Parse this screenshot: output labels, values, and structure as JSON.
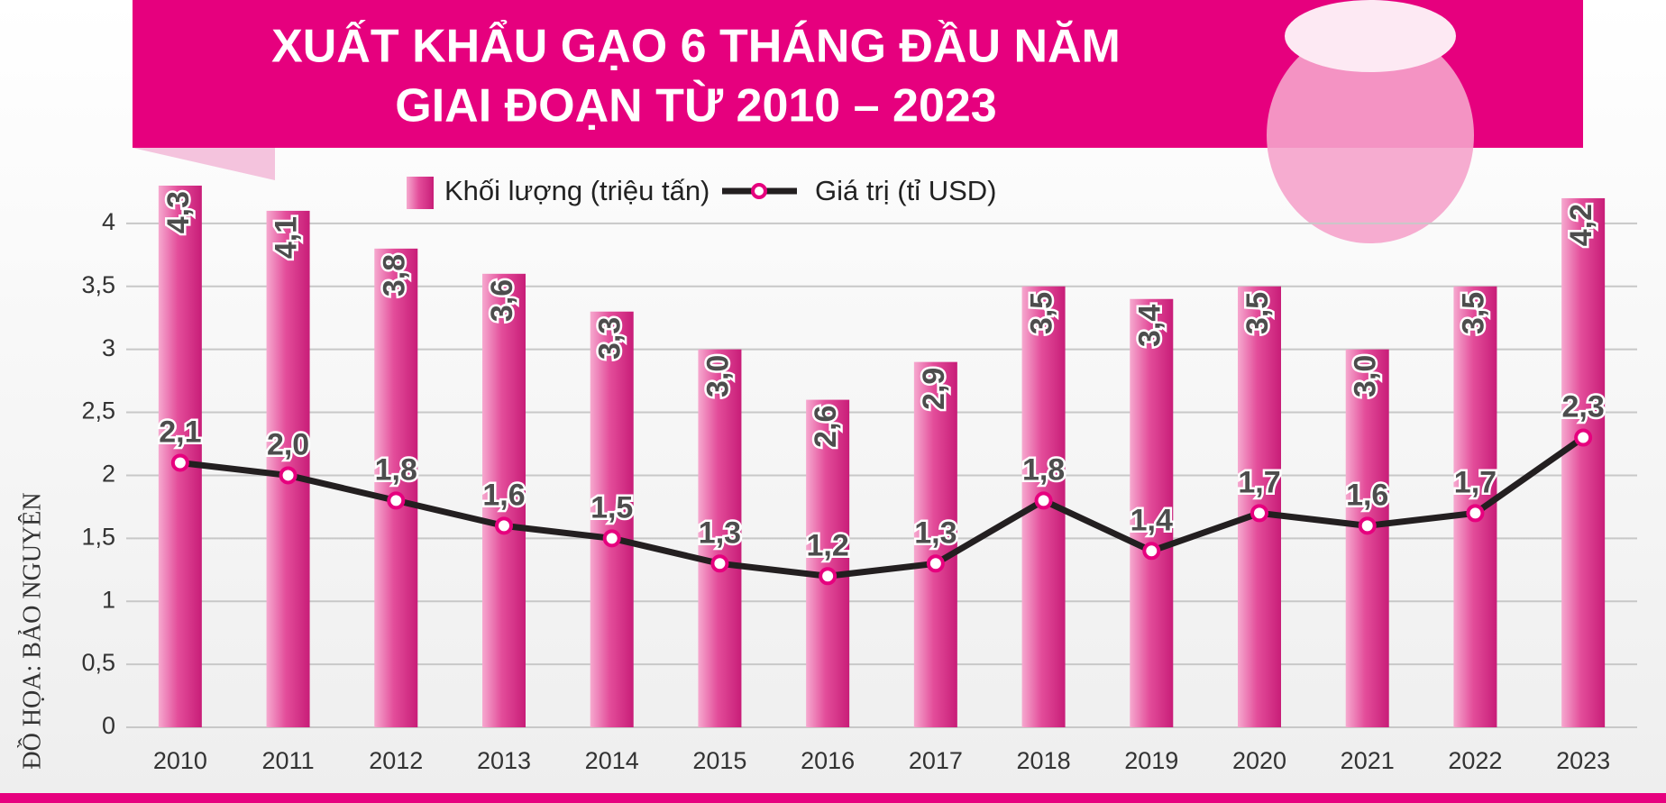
{
  "chart_data": {
    "type": "bar",
    "title": [
      "XUẤT KHẨU GẠO 6 THÁNG ĐẦU NĂM",
      "GIAI ĐOẠN TỪ 2010 – 2023"
    ],
    "credit": "ĐỒ HỌA: BẢO NGUYÊN",
    "categories": [
      "2010",
      "2011",
      "2012",
      "2013",
      "2014",
      "2015",
      "2016",
      "2017",
      "2018",
      "2019",
      "2020",
      "2021",
      "2022",
      "2023"
    ],
    "series": [
      {
        "name": "Khối lượng (triệu tấn)",
        "type": "bar",
        "color": "#e34d9a",
        "values": [
          4.3,
          4.1,
          3.8,
          3.6,
          3.3,
          3.0,
          2.6,
          2.9,
          3.5,
          3.4,
          3.5,
          3.0,
          3.5,
          4.2
        ],
        "value_labels": [
          "4,3",
          "4,1",
          "3,8",
          "3,6",
          "3,3",
          "3,0",
          "2,6",
          "2,9",
          "3,5",
          "3,4",
          "3,5",
          "3,0",
          "3,5",
          "4,2"
        ]
      },
      {
        "name": "Giá trị (tỉ USD)",
        "type": "line",
        "color": "#231f20",
        "marker_color": "#e6007e",
        "values": [
          2.1,
          2.0,
          1.8,
          1.6,
          1.5,
          1.3,
          1.2,
          1.3,
          1.8,
          1.4,
          1.7,
          1.6,
          1.7,
          2.3
        ],
        "value_labels": [
          "2,1",
          "2,0",
          "1,8",
          "1,6",
          "1,5",
          "1,3",
          "1,2",
          "1,3",
          "1,8",
          "1,4",
          "1,7",
          "1,6",
          "1,7",
          "2,3"
        ]
      }
    ],
    "ylim": [
      0,
      4.5
    ],
    "yticks": [
      0,
      {
        "value": 0.5,
        "label": "0,5"
      },
      1,
      {
        "value": 1.5,
        "label": "1,5"
      },
      2,
      {
        "value": 2.5,
        "label": "2,5"
      },
      3,
      {
        "value": 3.5,
        "label": "3,5"
      },
      4
    ],
    "grid": true
  }
}
